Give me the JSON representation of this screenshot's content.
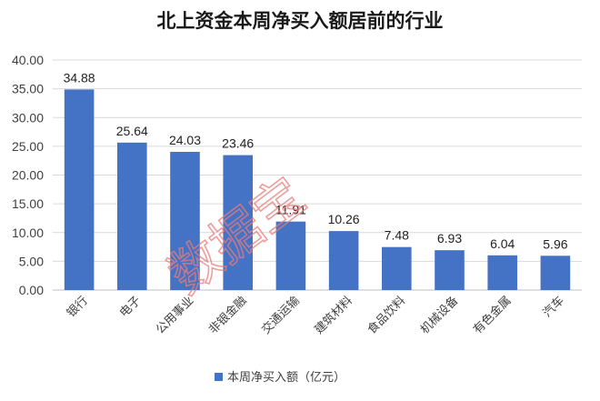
{
  "chart_data": {
    "type": "bar",
    "title": "北上资金本周净买入额居前的行业",
    "categories": [
      "银行",
      "电子",
      "公用事业",
      "非银金融",
      "交通运输",
      "建筑材料",
      "食品饮料",
      "机械设备",
      "有色金属",
      "汽车"
    ],
    "series": [
      {
        "name": "本周净买入额（亿元）",
        "values": [
          34.88,
          25.64,
          24.03,
          23.46,
          11.91,
          10.26,
          7.48,
          6.93,
          6.04,
          5.96
        ],
        "color": "#4472c4"
      }
    ],
    "data_labels": [
      "34.88",
      "25.64",
      "24.03",
      "23.46",
      "11.91",
      "10.26",
      "7.48",
      "6.93",
      "6.04",
      "5.96"
    ],
    "yticks": [
      "0.00",
      "5.00",
      "10.00",
      "15.00",
      "20.00",
      "25.00",
      "30.00",
      "35.00",
      "40.00"
    ],
    "ylim": [
      0,
      40
    ],
    "grid": true,
    "legend_position": "bottom"
  },
  "watermark": "数据宝"
}
